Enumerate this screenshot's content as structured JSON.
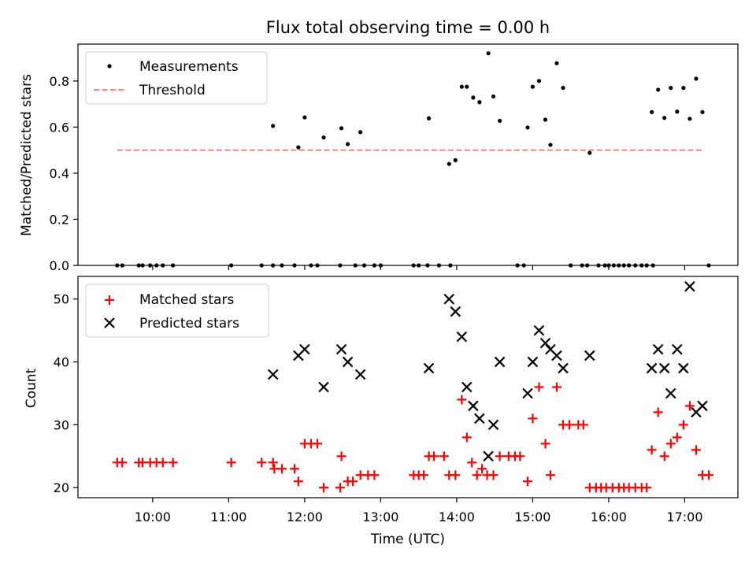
{
  "chart_data": [
    {
      "type": "scatter",
      "title": "Flux total observing time = 0.00 h",
      "xlabel": "",
      "ylabel": "Matched/Predicted stars",
      "ylim": [
        0,
        0.96
      ],
      "yticks": [
        "0.0",
        "0.2",
        "0.4",
        "0.6",
        "0.8"
      ],
      "ytick_values": [
        0.0,
        0.2,
        0.4,
        0.6,
        0.8
      ],
      "legend": {
        "placement": "top-left",
        "entries": [
          "Measurements",
          "Threshold"
        ]
      },
      "series": [
        {
          "name": "Measurements",
          "marker": "dot",
          "color": "#000000",
          "points": [
            [
              "09:32",
              0
            ],
            [
              "09:36",
              0
            ],
            [
              "09:49",
              0
            ],
            [
              "09:52",
              0
            ],
            [
              "09:58",
              0
            ],
            [
              "10:03",
              0
            ],
            [
              "10:08",
              0
            ],
            [
              "10:16",
              0
            ],
            [
              "11:02",
              0
            ],
            [
              "11:26",
              0
            ],
            [
              "11:35",
              0
            ],
            [
              "11:42",
              0
            ],
            [
              "11:52",
              0
            ],
            [
              "12:05",
              0
            ],
            [
              "12:10",
              0
            ],
            [
              "12:28",
              0
            ],
            [
              "12:40",
              0
            ],
            [
              "12:47",
              0
            ],
            [
              "12:55",
              0
            ],
            [
              "13:00",
              0
            ],
            [
              "13:26",
              0
            ],
            [
              "13:30",
              0
            ],
            [
              "13:37",
              0
            ],
            [
              "13:46",
              0
            ],
            [
              "13:55",
              0
            ],
            [
              "14:48",
              0
            ],
            [
              "14:53",
              0
            ],
            [
              "15:30",
              0
            ],
            [
              "15:39",
              0
            ],
            [
              "15:43",
              0
            ],
            [
              "15:52",
              0
            ],
            [
              "15:57",
              0
            ],
            [
              "16:00",
              0
            ],
            [
              "16:04",
              0
            ],
            [
              "16:08",
              0
            ],
            [
              "16:12",
              0
            ],
            [
              "16:16",
              0
            ],
            [
              "16:21",
              0
            ],
            [
              "16:26",
              0
            ],
            [
              "16:30",
              0
            ],
            [
              "16:35",
              0
            ],
            [
              "17:19",
              0
            ],
            [
              "11:35",
              0.605
            ],
            [
              "11:55",
              0.512
            ],
            [
              "11:60",
              0.642
            ],
            [
              "12:15",
              0.555
            ],
            [
              "12:29",
              0.595
            ],
            [
              "12:34",
              0.526
            ],
            [
              "12:44",
              0.578
            ],
            [
              "13:38",
              0.638
            ],
            [
              "13:54",
              0.44
            ],
            [
              "13:59",
              0.456
            ],
            [
              "14:04",
              0.775
            ],
            [
              "14:08",
              0.775
            ],
            [
              "14:13",
              0.728
            ],
            [
              "14:18",
              0.708
            ],
            [
              "14:25",
              0.92
            ],
            [
              "14:29",
              0.733
            ],
            [
              "14:34",
              0.627
            ],
            [
              "14:56",
              0.598
            ],
            [
              "15:00",
              0.775
            ],
            [
              "15:05",
              0.8
            ],
            [
              "15:10",
              0.632
            ],
            [
              "15:14",
              0.523
            ],
            [
              "15:19",
              0.877
            ],
            [
              "15:24",
              0.77
            ],
            [
              "15:45",
              0.488
            ],
            [
              "16:34",
              0.665
            ],
            [
              "16:39",
              0.762
            ],
            [
              "16:44",
              0.64
            ],
            [
              "16:49",
              0.77
            ],
            [
              "16:54",
              0.667
            ],
            [
              "16:59",
              0.77
            ],
            [
              "17:04",
              0.636
            ],
            [
              "17:09",
              0.81
            ],
            [
              "17:14",
              0.665
            ]
          ]
        },
        {
          "name": "Threshold",
          "style": "dashed",
          "color": "#ff7f7f",
          "x": [
            "09:32",
            "17:15"
          ],
          "y": [
            0.5,
            0.5
          ]
        }
      ]
    },
    {
      "type": "scatter",
      "title": "",
      "xlabel": "Time (UTC)",
      "ylabel": "Count",
      "ylim": [
        18.4,
        53.6
      ],
      "yticks": [
        "20",
        "30",
        "40",
        "50"
      ],
      "ytick_values": [
        20,
        30,
        40,
        50
      ],
      "xlim": [
        "09:01",
        "17:42"
      ],
      "xticks": [
        "10:00",
        "11:00",
        "12:00",
        "13:00",
        "14:00",
        "15:00",
        "16:00",
        "17:00"
      ],
      "legend": {
        "placement": "top-left",
        "entries": [
          "Matched stars",
          "Predicted stars"
        ]
      },
      "series": [
        {
          "name": "Matched stars",
          "marker": "plus",
          "color": "#ff0000",
          "points": [
            [
              "09:32",
              24
            ],
            [
              "09:36",
              24
            ],
            [
              "09:49",
              24
            ],
            [
              "09:52",
              24
            ],
            [
              "09:58",
              24
            ],
            [
              "10:03",
              24
            ],
            [
              "10:08",
              24
            ],
            [
              "10:16",
              24
            ],
            [
              "11:02",
              24
            ],
            [
              "11:26",
              24
            ],
            [
              "11:35",
              24
            ],
            [
              "11:36",
              23
            ],
            [
              "11:42",
              23
            ],
            [
              "11:52",
              23
            ],
            [
              "11:55",
              21
            ],
            [
              "11:60",
              27
            ],
            [
              "12:05",
              27
            ],
            [
              "12:10",
              27
            ],
            [
              "12:15",
              20
            ],
            [
              "12:28",
              20
            ],
            [
              "12:29",
              25
            ],
            [
              "12:34",
              21
            ],
            [
              "12:38",
              21
            ],
            [
              "12:44",
              22
            ],
            [
              "12:50",
              22
            ],
            [
              "12:55",
              22
            ],
            [
              "13:26",
              22
            ],
            [
              "13:30",
              22
            ],
            [
              "13:34",
              22
            ],
            [
              "13:38",
              25
            ],
            [
              "13:42",
              25
            ],
            [
              "13:50",
              25
            ],
            [
              "13:54",
              22
            ],
            [
              "13:59",
              22
            ],
            [
              "14:04",
              34
            ],
            [
              "14:08",
              28
            ],
            [
              "14:12",
              24
            ],
            [
              "14:16",
              22
            ],
            [
              "14:20",
              23
            ],
            [
              "14:24",
              22
            ],
            [
              "14:29",
              22
            ],
            [
              "14:34",
              25
            ],
            [
              "14:41",
              25
            ],
            [
              "14:46",
              25
            ],
            [
              "14:50",
              25
            ],
            [
              "14:56",
              21
            ],
            [
              "15:00",
              31
            ],
            [
              "15:05",
              36
            ],
            [
              "15:10",
              27
            ],
            [
              "15:14",
              22
            ],
            [
              "15:19",
              36
            ],
            [
              "15:24",
              30
            ],
            [
              "15:29",
              30
            ],
            [
              "15:36",
              30
            ],
            [
              "15:40",
              30
            ],
            [
              "15:45",
              20
            ],
            [
              "15:50",
              20
            ],
            [
              "15:54",
              20
            ],
            [
              "15:58",
              20
            ],
            [
              "16:03",
              20
            ],
            [
              "16:08",
              20
            ],
            [
              "16:12",
              20
            ],
            [
              "16:16",
              20
            ],
            [
              "16:21",
              20
            ],
            [
              "16:26",
              20
            ],
            [
              "16:30",
              20
            ],
            [
              "16:34",
              26
            ],
            [
              "16:39",
              32
            ],
            [
              "16:44",
              25
            ],
            [
              "16:49",
              27
            ],
            [
              "16:54",
              28
            ],
            [
              "16:59",
              30
            ],
            [
              "17:04",
              33
            ],
            [
              "17:09",
              26
            ],
            [
              "17:14",
              22
            ],
            [
              "17:19",
              22
            ]
          ]
        },
        {
          "name": "Predicted stars",
          "marker": "x",
          "color": "#000000",
          "points": [
            [
              "11:35",
              38
            ],
            [
              "11:55",
              41
            ],
            [
              "11:60",
              42
            ],
            [
              "12:15",
              36
            ],
            [
              "12:29",
              42
            ],
            [
              "12:34",
              40
            ],
            [
              "12:44",
              38
            ],
            [
              "13:38",
              39
            ],
            [
              "13:54",
              50
            ],
            [
              "13:59",
              48
            ],
            [
              "14:04",
              44
            ],
            [
              "14:08",
              36
            ],
            [
              "14:13",
              33
            ],
            [
              "14:18",
              31
            ],
            [
              "14:25",
              25
            ],
            [
              "14:29",
              30
            ],
            [
              "14:34",
              40
            ],
            [
              "14:56",
              35
            ],
            [
              "15:00",
              40
            ],
            [
              "15:05",
              45
            ],
            [
              "15:10",
              43
            ],
            [
              "15:14",
              42
            ],
            [
              "15:19",
              41
            ],
            [
              "15:24",
              39
            ],
            [
              "15:45",
              41
            ],
            [
              "16:34",
              39
            ],
            [
              "16:39",
              42
            ],
            [
              "16:44",
              39
            ],
            [
              "16:49",
              35
            ],
            [
              "16:54",
              42
            ],
            [
              "16:59",
              39
            ],
            [
              "17:04",
              52
            ],
            [
              "17:09",
              32
            ],
            [
              "17:14",
              33
            ]
          ]
        }
      ]
    }
  ],
  "colors": {
    "matched": "#ff0000",
    "predicted": "#000000",
    "threshold": "#ff7f7f",
    "measurements": "#000000"
  }
}
